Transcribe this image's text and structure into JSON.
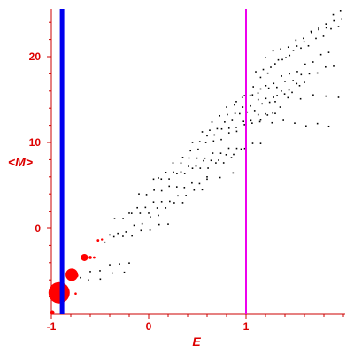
{
  "chart_data": {
    "type": "scatter",
    "title": "",
    "xlabel": "E",
    "ylabel": "<M>",
    "xlim": [
      -1,
      2
    ],
    "ylim": [
      -10,
      26
    ],
    "grid": false,
    "x_ticks": [
      -1,
      0,
      1
    ],
    "x_tick_labels": [
      "-1",
      "0",
      "1"
    ],
    "y_ticks": [
      0,
      10,
      20
    ],
    "y_tick_labels": [
      "0",
      "10",
      "20"
    ],
    "vlines": [
      {
        "x": -0.89,
        "color": "#0000ee"
      },
      {
        "x": 1.0,
        "color": "#ee00ee"
      }
    ],
    "colors": {
      "axis": "#cc0000",
      "tick_text": "#dd0000",
      "red_points": "#ff0000",
      "black_points": "#000000"
    },
    "red_points": [
      {
        "x": -0.92,
        "y": -7.5,
        "size": 12
      },
      {
        "x": -0.79,
        "y": -5.4,
        "size": 7
      },
      {
        "x": -0.74,
        "y": -5.5,
        "size": 2
      },
      {
        "x": -0.66,
        "y": -3.4,
        "size": 4
      },
      {
        "x": -0.6,
        "y": -3.4,
        "size": 1.8
      },
      {
        "x": -0.56,
        "y": -3.4,
        "size": 1.4
      },
      {
        "x": -0.52,
        "y": -1.4,
        "size": 1.4
      },
      {
        "x": -0.48,
        "y": -1.3,
        "size": 1.2
      },
      {
        "x": -0.75,
        "y": -7.6,
        "size": 1.3
      },
      {
        "x": -0.99,
        "y": -9.8,
        "size": 2.5
      }
    ],
    "black_series": [
      {
        "x_start": -0.7,
        "x_end": -0.2,
        "y_start": -5.5,
        "y_end": -3.8,
        "n": 6
      },
      {
        "x_start": -0.62,
        "x_end": -0.25,
        "y_start": -6.0,
        "y_end": -5.0,
        "n": 4
      },
      {
        "x_start": -0.4,
        "x_end": 0.1,
        "y_start": -1.0,
        "y_end": 1.5,
        "n": 7
      },
      {
        "x_start": -0.45,
        "x_end": 0.2,
        "y_start": -1.5,
        "y_end": 0.5,
        "n": 8
      },
      {
        "x_start": -0.35,
        "x_end": 0.35,
        "y_start": 1.0,
        "y_end": 3.0,
        "n": 9
      },
      {
        "x_start": -0.2,
        "x_end": 0.55,
        "y_start": 2.0,
        "y_end": 4.5,
        "n": 10
      },
      {
        "x_start": -0.1,
        "x_end": 0.6,
        "y_start": 4.0,
        "y_end": 5.5,
        "n": 10
      },
      {
        "x_start": 0.05,
        "x_end": 0.85,
        "y_start": 5.5,
        "y_end": 8.0,
        "n": 11
      },
      {
        "x_start": 0.1,
        "x_end": 0.95,
        "y_start": 6.0,
        "y_end": 9.0,
        "n": 12
      },
      {
        "x_start": 0.25,
        "x_end": 1.15,
        "y_start": 7.5,
        "y_end": 10.0,
        "n": 12
      },
      {
        "x_start": 0.35,
        "x_end": 1.3,
        "y_start": 8.5,
        "y_end": 13.5,
        "n": 13
      },
      {
        "x_start": 0.45,
        "x_end": 1.35,
        "y_start": 10.0,
        "y_end": 14.0,
        "n": 13
      },
      {
        "x_start": 0.55,
        "x_end": 1.55,
        "y_start": 11.0,
        "y_end": 16.5,
        "n": 14
      },
      {
        "x_start": 0.65,
        "x_end": 1.6,
        "y_start": 12.5,
        "y_end": 17.0,
        "n": 13
      },
      {
        "x_start": 0.8,
        "x_end": 1.85,
        "y_start": 14.0,
        "y_end": 20.5,
        "n": 14
      },
      {
        "x_start": 0.9,
        "x_end": 1.9,
        "y_start": 15.0,
        "y_end": 19.0,
        "n": 13
      },
      {
        "x_start": 1.0,
        "x_end": 1.97,
        "y_start": 16.0,
        "y_end": 25.5,
        "n": 14
      },
      {
        "x_start": 1.1,
        "x_end": 1.95,
        "y_start": 18.0,
        "y_end": 23.5,
        "n": 12
      },
      {
        "x_start": 1.2,
        "x_end": 1.98,
        "y_start": 20.0,
        "y_end": 24.5,
        "n": 11
      },
      {
        "x_start": 1.15,
        "x_end": 1.85,
        "y_start": 12.5,
        "y_end": 12.0,
        "n": 7
      },
      {
        "x_start": 1.3,
        "x_end": 1.95,
        "y_start": 15.0,
        "y_end": 15.5,
        "n": 6
      },
      {
        "x_start": 0.6,
        "x_end": 1.0,
        "y_start": 6.0,
        "y_end": 6.5,
        "n": 4
      }
    ]
  }
}
